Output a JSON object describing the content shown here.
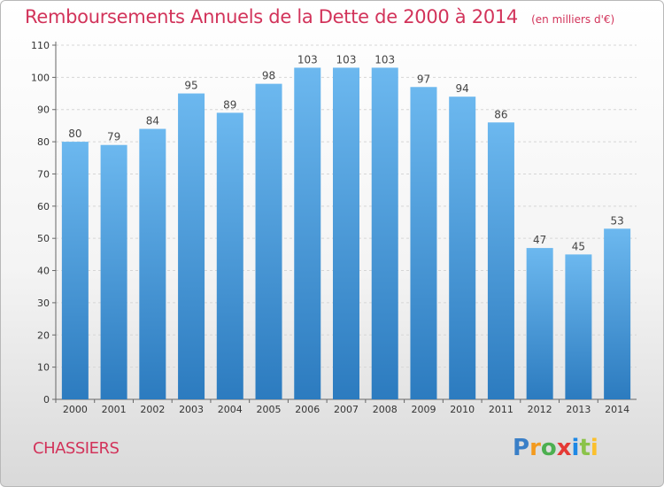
{
  "title": "Remboursements Annuels de la Dette de 2000 à 2014",
  "subtitle": "(en milliers d'€)",
  "commune": "CHASSIERS",
  "logo": {
    "letters": [
      "P",
      "r",
      "o",
      "x",
      "i",
      "t",
      "i"
    ],
    "colors": [
      "#3a7fc7",
      "#f39a1e",
      "#4caf50",
      "#e53935",
      "#1e88e5",
      "#8bc34a",
      "#fbc02d"
    ]
  },
  "colors": {
    "bar_top": "#6cb8ef",
    "bar_bottom": "#2c7bbf",
    "accent": "#d2335a"
  },
  "chart_data": {
    "type": "bar",
    "categories": [
      "2000",
      "2001",
      "2002",
      "2003",
      "2004",
      "2005",
      "2006",
      "2007",
      "2008",
      "2009",
      "2010",
      "2011",
      "2012",
      "2013",
      "2014"
    ],
    "values": [
      80,
      79,
      84,
      95,
      89,
      98,
      103,
      103,
      103,
      97,
      94,
      86,
      47,
      45,
      53
    ],
    "title": "Remboursements Annuels de la Dette de 2000 à 2014",
    "xlabel": "",
    "ylabel": "",
    "ylim": [
      0,
      110
    ],
    "yticks": [
      0,
      10,
      20,
      30,
      40,
      50,
      60,
      70,
      80,
      90,
      100,
      110
    ],
    "grid": true,
    "data_labels": true
  }
}
